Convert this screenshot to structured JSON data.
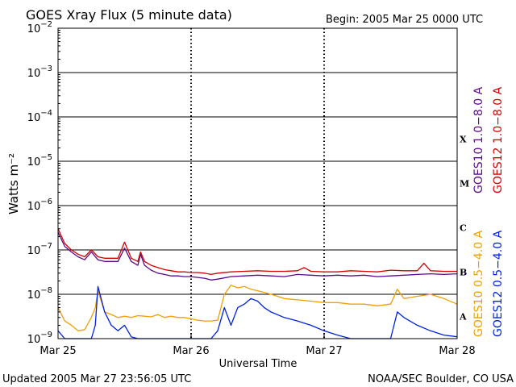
{
  "header": {
    "title": "GOES Xray Flux (5 minute data)",
    "begin": "Begin:  2005 Mar 25 0000 UTC"
  },
  "footer": {
    "updated": "Updated 2005 Mar 27 23:56:05 UTC",
    "credit": "NOAA/SEC Boulder, CO USA"
  },
  "colors": {
    "goes10_long": "#5a0a8a",
    "goes12_long": "#d40000",
    "goes10_short": "#f0a000",
    "goes12_short": "#0022dd",
    "grid": "#000000"
  },
  "chart_data": {
    "type": "line",
    "title": "GOES Xray Flux (5 minute data)",
    "xlabel": "Universal Time",
    "ylabel": "Watts m⁻²",
    "yscale": "log",
    "ylim": [
      1e-09,
      0.01
    ],
    "xlim": [
      0,
      3
    ],
    "x_ticks": [
      {
        "value": 0,
        "label": "Mar 25"
      },
      {
        "value": 1,
        "label": "Mar 26"
      },
      {
        "value": 2,
        "label": "Mar 27"
      },
      {
        "value": 3,
        "label": "Mar 28"
      }
    ],
    "y_ticks": [
      {
        "exp": -2,
        "base": "10",
        "sup": "−2"
      },
      {
        "exp": -3,
        "base": "10",
        "sup": "−3"
      },
      {
        "exp": -4,
        "base": "10",
        "sup": "−4"
      },
      {
        "exp": -5,
        "base": "10",
        "sup": "−5"
      },
      {
        "exp": -6,
        "base": "10",
        "sup": "−6"
      },
      {
        "exp": -7,
        "base": "10",
        "sup": "−7"
      },
      {
        "exp": -8,
        "base": "10",
        "sup": "−8"
      },
      {
        "exp": -9,
        "base": "10",
        "sup": "−9"
      }
    ],
    "flare_classes": [
      {
        "label": "X",
        "exp": -4.5
      },
      {
        "label": "M",
        "exp": -5.5
      },
      {
        "label": "C",
        "exp": -6.5
      },
      {
        "label": "B",
        "exp": -7.5
      },
      {
        "label": "A",
        "exp": -8.5
      }
    ],
    "grid": true,
    "series": [
      {
        "name": "GOES10 1.0−8.0 A",
        "color": "#5a0a8a",
        "x": [
          0,
          0.05,
          0.1,
          0.15,
          0.2,
          0.25,
          0.3,
          0.35,
          0.4,
          0.45,
          0.5,
          0.55,
          0.6,
          0.62,
          0.65,
          0.7,
          0.75,
          0.8,
          0.85,
          0.9,
          0.95,
          1.0,
          1.05,
          1.1,
          1.15,
          1.2,
          1.3,
          1.4,
          1.5,
          1.6,
          1.7,
          1.8,
          1.9,
          2.0,
          2.1,
          2.2,
          2.3,
          2.35,
          2.4,
          2.5,
          2.6,
          2.7,
          2.8,
          2.9,
          3.0
        ],
        "y": [
          2.5e-07,
          1.2e-07,
          9e-08,
          7e-08,
          6e-08,
          9e-08,
          6e-08,
          5.5e-08,
          5.5e-08,
          5.5e-08,
          1.1e-07,
          5.5e-08,
          4.5e-08,
          8e-08,
          4.5e-08,
          3.5e-08,
          3e-08,
          2.8e-08,
          2.6e-08,
          2.6e-08,
          2.5e-08,
          2.5e-08,
          2.4e-08,
          2.3e-08,
          2.1e-08,
          2.2e-08,
          2.5e-08,
          2.6e-08,
          2.7e-08,
          2.6e-08,
          2.5e-08,
          2.8e-08,
          2.7e-08,
          2.6e-08,
          2.7e-08,
          2.6e-08,
          2.7e-08,
          2.6e-08,
          2.5e-08,
          2.6e-08,
          2.7e-08,
          2.8e-08,
          2.9e-08,
          2.8e-08,
          2.9e-08
        ]
      },
      {
        "name": "GOES12 1.0−8.0 A",
        "color": "#d40000",
        "x": [
          0,
          0.05,
          0.1,
          0.15,
          0.2,
          0.25,
          0.3,
          0.35,
          0.4,
          0.45,
          0.5,
          0.55,
          0.6,
          0.62,
          0.65,
          0.7,
          0.75,
          0.8,
          0.85,
          0.9,
          0.95,
          1.0,
          1.05,
          1.1,
          1.15,
          1.2,
          1.3,
          1.4,
          1.5,
          1.6,
          1.7,
          1.8,
          1.85,
          1.9,
          2.0,
          2.1,
          2.2,
          2.3,
          2.4,
          2.5,
          2.6,
          2.7,
          2.75,
          2.8,
          2.9,
          3.0
        ],
        "y": [
          3e-07,
          1.4e-07,
          1e-07,
          8e-08,
          7e-08,
          1e-07,
          7e-08,
          6.5e-08,
          6.5e-08,
          6.5e-08,
          1.5e-07,
          6.5e-08,
          5.5e-08,
          9e-08,
          5.5e-08,
          4.5e-08,
          4e-08,
          3.6e-08,
          3.4e-08,
          3.2e-08,
          3.2e-08,
          3.1e-08,
          3.1e-08,
          3e-08,
          2.8e-08,
          3e-08,
          3.2e-08,
          3.3e-08,
          3.4e-08,
          3.3e-08,
          3.3e-08,
          3.4e-08,
          4e-08,
          3.3e-08,
          3.2e-08,
          3.2e-08,
          3.4e-08,
          3.3e-08,
          3.2e-08,
          3.5e-08,
          3.4e-08,
          3.4e-08,
          5e-08,
          3.4e-08,
          3.3e-08,
          3.3e-08
        ]
      },
      {
        "name": "GOES10 0.5−4.0 A",
        "color": "#f0a000",
        "x": [
          0,
          0.05,
          0.1,
          0.15,
          0.2,
          0.25,
          0.28,
          0.3,
          0.35,
          0.4,
          0.45,
          0.5,
          0.55,
          0.6,
          0.65,
          0.7,
          0.75,
          0.8,
          0.85,
          0.9,
          0.95,
          1.0,
          1.05,
          1.1,
          1.15,
          1.2,
          1.25,
          1.3,
          1.35,
          1.4,
          1.45,
          1.5,
          1.55,
          1.6,
          1.65,
          1.7,
          1.8,
          1.9,
          2.0,
          2.1,
          2.2,
          2.3,
          2.4,
          2.5,
          2.55,
          2.6,
          2.7,
          2.8,
          2.9,
          3.0
        ],
        "y": [
          5e-09,
          2.5e-09,
          2e-09,
          1.5e-09,
          1.6e-09,
          3e-09,
          5e-09,
          1.2e-08,
          4e-09,
          3.5e-09,
          3e-09,
          3.2e-09,
          3e-09,
          3.3e-09,
          3.2e-09,
          3.1e-09,
          3.5e-09,
          3e-09,
          3.2e-09,
          3e-09,
          3e-09,
          2.8e-09,
          2.6e-09,
          2.5e-09,
          2.5e-09,
          2.6e-09,
          1e-08,
          1.6e-08,
          1.4e-08,
          1.5e-08,
          1.3e-08,
          1.2e-08,
          1.1e-08,
          1e-08,
          9e-09,
          8e-09,
          7.5e-09,
          7e-09,
          6.5e-09,
          6.5e-09,
          6e-09,
          6e-09,
          5.5e-09,
          6e-09,
          1.3e-08,
          8e-09,
          9e-09,
          1e-08,
          8e-09,
          6e-09
        ]
      },
      {
        "name": "GOES12 0.5−4.0 A",
        "color": "#0022dd",
        "x": [
          0,
          0.05,
          0.1,
          0.15,
          0.2,
          0.25,
          0.28,
          0.3,
          0.35,
          0.4,
          0.45,
          0.5,
          0.55,
          0.6,
          0.7,
          0.8,
          0.9,
          1.0,
          1.1,
          1.15,
          1.2,
          1.25,
          1.3,
          1.35,
          1.4,
          1.45,
          1.5,
          1.55,
          1.6,
          1.7,
          1.8,
          1.9,
          2.0,
          2.1,
          2.2,
          2.3,
          2.4,
          2.5,
          2.55,
          2.6,
          2.7,
          2.8,
          2.9,
          3.0
        ],
        "y": [
          1.5e-09,
          1e-09,
          1e-09,
          1e-09,
          1e-09,
          1e-09,
          2e-09,
          1.5e-08,
          4e-09,
          2e-09,
          1.5e-09,
          2e-09,
          1.1e-09,
          1e-09,
          1e-09,
          1e-09,
          1e-09,
          1e-09,
          1e-09,
          1e-09,
          1.5e-09,
          5e-09,
          2e-09,
          5e-09,
          6e-09,
          8e-09,
          7e-09,
          5e-09,
          4e-09,
          3e-09,
          2.5e-09,
          2e-09,
          1.5e-09,
          1.2e-09,
          1e-09,
          1e-09,
          1e-09,
          1e-09,
          4e-09,
          3e-09,
          2e-09,
          1.5e-09,
          1.2e-09,
          1.1e-09
        ]
      }
    ]
  }
}
